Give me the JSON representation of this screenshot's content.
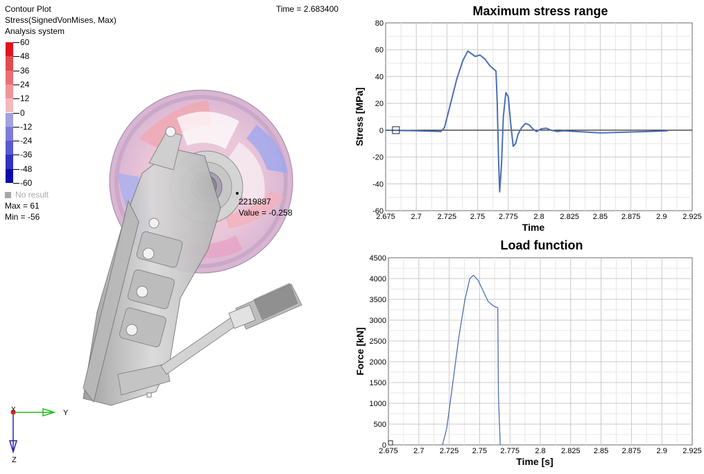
{
  "viewport": {
    "plot_title": "Contour Plot",
    "result_type": "Stress(SignedVonMises, Max)",
    "system": "Analysis system",
    "time": "Time = 2.683400",
    "legend": {
      "levels": [
        {
          "label": "60",
          "color": "#e1141e"
        },
        {
          "label": "48",
          "color": "#e44a4f"
        },
        {
          "label": "36",
          "color": "#e96f73"
        },
        {
          "label": "24",
          "color": "#ef9599"
        },
        {
          "label": "12",
          "color": "#f3babb"
        },
        {
          "label": "0",
          "color": "#c9c9ea"
        },
        {
          "label": "-12",
          "color": "#a1a1e0"
        },
        {
          "label": "-24",
          "color": "#7d7dd7"
        },
        {
          "label": "-36",
          "color": "#5a5acd"
        },
        {
          "label": "-48",
          "color": "#3232c3"
        },
        {
          "label": "-60",
          "color": "#0a0aa8"
        }
      ],
      "no_result": "No result",
      "max": "Max = 61",
      "min": "Min = -56"
    },
    "probe": {
      "node": "2219887",
      "value": "Value = -0.258"
    },
    "triad": {
      "x": "X",
      "y": "Y",
      "z": "Z"
    }
  },
  "chart_data": [
    {
      "type": "line",
      "title": "Maximum stress range",
      "xlabel": "Time",
      "ylabel": "Stress [MPa]",
      "xlim": [
        2.675,
        2.925
      ],
      "ylim": [
        -60,
        80
      ],
      "xticks": [
        "2.675",
        "2.7",
        "2.725",
        "2.75",
        "2.775",
        "2.8",
        "2.825",
        "2.85",
        "2.875",
        "2.9",
        "2.925"
      ],
      "yticks": [
        "-60",
        "-40",
        "-20",
        "0",
        "20",
        "40",
        "60",
        "80"
      ],
      "grid": true,
      "line_color": "#4a6fb5",
      "series": [
        {
          "x": [
            2.675,
            2.7,
            2.72,
            2.723,
            2.728,
            2.733,
            2.738,
            2.742,
            2.745,
            2.748,
            2.752,
            2.756,
            2.76,
            2.765,
            2.766,
            2.767,
            2.768,
            2.7695,
            2.771,
            2.773,
            2.775,
            2.777,
            2.779,
            2.781,
            2.783,
            2.786,
            2.789,
            2.792,
            2.795,
            2.798,
            2.802,
            2.806,
            2.81,
            2.815,
            2.82,
            2.83,
            2.85,
            2.87,
            2.89,
            2.905
          ],
          "y": [
            0,
            -0.5,
            -1,
            2,
            20,
            38,
            52,
            59,
            57,
            55,
            56,
            53,
            48,
            44,
            20,
            -20,
            -46,
            -25,
            10,
            28,
            25,
            5,
            -12,
            -10,
            -3,
            2,
            5,
            4,
            1,
            -1,
            1,
            1.5,
            0,
            -1,
            -0.5,
            -1,
            -2,
            -1.5,
            -1,
            -0.5
          ]
        }
      ]
    },
    {
      "type": "line",
      "title": "Load function",
      "xlabel": "Time [s]",
      "ylabel": "Force [kN]",
      "xlim": [
        2.675,
        2.925
      ],
      "ylim": [
        0,
        4500
      ],
      "xticks": [
        "2.675",
        "2.7",
        "2.725",
        "2.75",
        "2.775",
        "2.8",
        "2.825",
        "2.85",
        "2.875",
        "2.9",
        "2.925"
      ],
      "yticks": [
        "0",
        "500",
        "1000",
        "1500",
        "2000",
        "2500",
        "3000",
        "3500",
        "4000",
        "4500"
      ],
      "grid": true,
      "line_color": "#4a6fb5",
      "series": [
        {
          "x": [
            2.7195,
            2.723,
            2.728,
            2.733,
            2.738,
            2.742,
            2.745,
            2.749,
            2.753,
            2.757,
            2.761,
            2.763,
            2.765,
            2.7655,
            2.767
          ],
          "y": [
            0,
            400,
            1500,
            2600,
            3500,
            4000,
            4080,
            3950,
            3700,
            3450,
            3350,
            3320,
            3300,
            1200,
            0
          ]
        }
      ]
    }
  ]
}
